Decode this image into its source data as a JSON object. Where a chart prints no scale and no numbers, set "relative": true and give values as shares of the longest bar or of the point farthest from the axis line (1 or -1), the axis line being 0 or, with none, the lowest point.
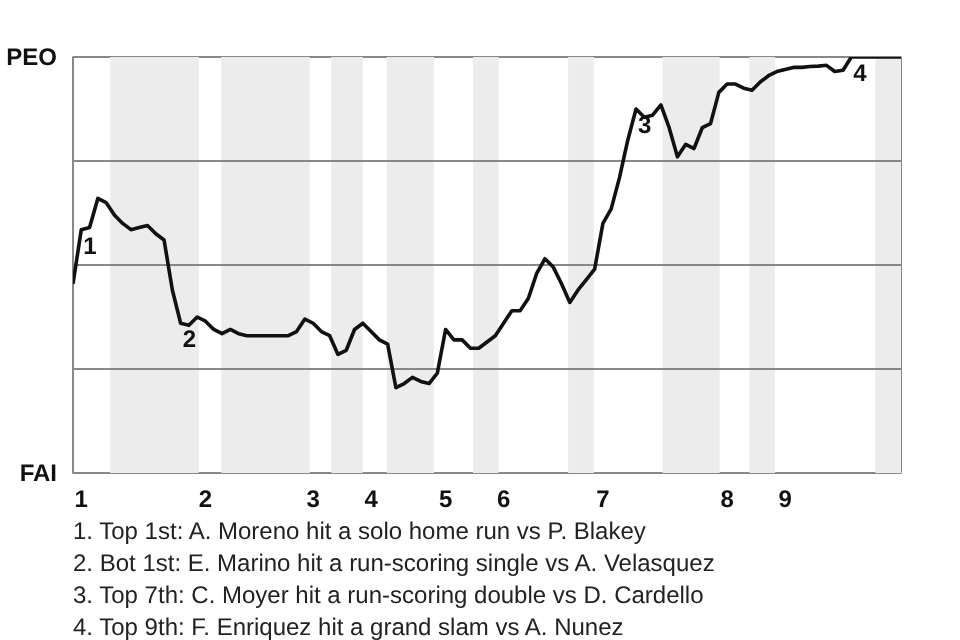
{
  "chart_data": {
    "type": "line",
    "color": "#111111",
    "relative": true,
    "categories": [
      null,
      "1",
      null,
      null,
      null,
      null,
      null,
      null,
      null,
      null,
      null,
      null,
      null,
      null,
      null,
      null,
      "2",
      null,
      null,
      null,
      null,
      null,
      null,
      null,
      null,
      null,
      null,
      null,
      null,
      "3",
      null,
      null,
      null,
      null,
      null,
      null,
      "4",
      null,
      null,
      null,
      null,
      null,
      null,
      null,
      null,
      "5",
      null,
      null,
      null,
      null,
      null,
      null,
      "6",
      null,
      null,
      null,
      null,
      null,
      null,
      null,
      null,
      null,
      null,
      null,
      "7",
      null,
      null,
      null,
      null,
      null,
      null,
      null,
      null,
      null,
      null,
      null,
      null,
      null,
      null,
      "8",
      null,
      null,
      null,
      null,
      null,
      null,
      "9",
      null,
      null,
      null,
      null,
      null,
      null,
      null,
      null,
      null,
      null,
      null,
      null,
      null,
      null
    ],
    "values": [
      0.455,
      0.585,
      0.59,
      0.66,
      0.65,
      0.62,
      0.6,
      0.585,
      0.59,
      0.595,
      0.575,
      0.56,
      0.44,
      0.36,
      0.355,
      0.375,
      0.365,
      0.345,
      0.335,
      0.345,
      0.335,
      0.33,
      0.33,
      0.33,
      0.33,
      0.33,
      0.33,
      0.34,
      0.37,
      0.36,
      0.34,
      0.33,
      0.285,
      0.295,
      0.345,
      0.36,
      0.34,
      0.32,
      0.31,
      0.205,
      0.215,
      0.23,
      0.22,
      0.215,
      0.24,
      0.345,
      0.32,
      0.32,
      0.3,
      0.3,
      0.315,
      0.33,
      0.36,
      0.39,
      0.39,
      0.42,
      0.48,
      0.515,
      0.495,
      0.455,
      0.41,
      0.44,
      0.465,
      0.49,
      0.6,
      0.635,
      0.71,
      0.8,
      0.875,
      0.855,
      0.86,
      0.885,
      0.83,
      0.76,
      0.79,
      0.78,
      0.83,
      0.84,
      0.915,
      0.935,
      0.935,
      0.925,
      0.92,
      0.94,
      0.955,
      0.965,
      0.97,
      0.975,
      0.975,
      0.977,
      0.978,
      0.98,
      0.965,
      0.968,
      1,
      1,
      1,
      1,
      1,
      1,
      1
    ],
    "marker": "none",
    "line_style": "solid",
    "ref_lines": [
      {
        "axis": "y",
        "value": 0.75,
        "color": "#888888"
      },
      {
        "axis": "y",
        "value": 0.5,
        "color": "#888888"
      },
      {
        "axis": "y",
        "value": 0.25,
        "color": "#888888"
      }
    ],
    "annotations": [
      "PEO",
      "FAI",
      {
        "text": "1",
        "x": "1",
        "y": 0.585
      },
      {
        "text": "2",
        "y": 0.36
      },
      {
        "text": "3",
        "y": 0.875
      },
      {
        "text": "4",
        "y": 1
      },
      "1. Top 1st: A. Moreno hit a solo home run vs P. Blakey",
      "2. Bot 1st: E. Marino hit a run-scoring single vs A. Velasquez",
      "3. Top 7th: C. Moyer hit a run-scoring double vs D. Cardello",
      "4. Top 9th: F. Enriquez hit a grand slam vs A. Nunez"
    ]
  }
}
